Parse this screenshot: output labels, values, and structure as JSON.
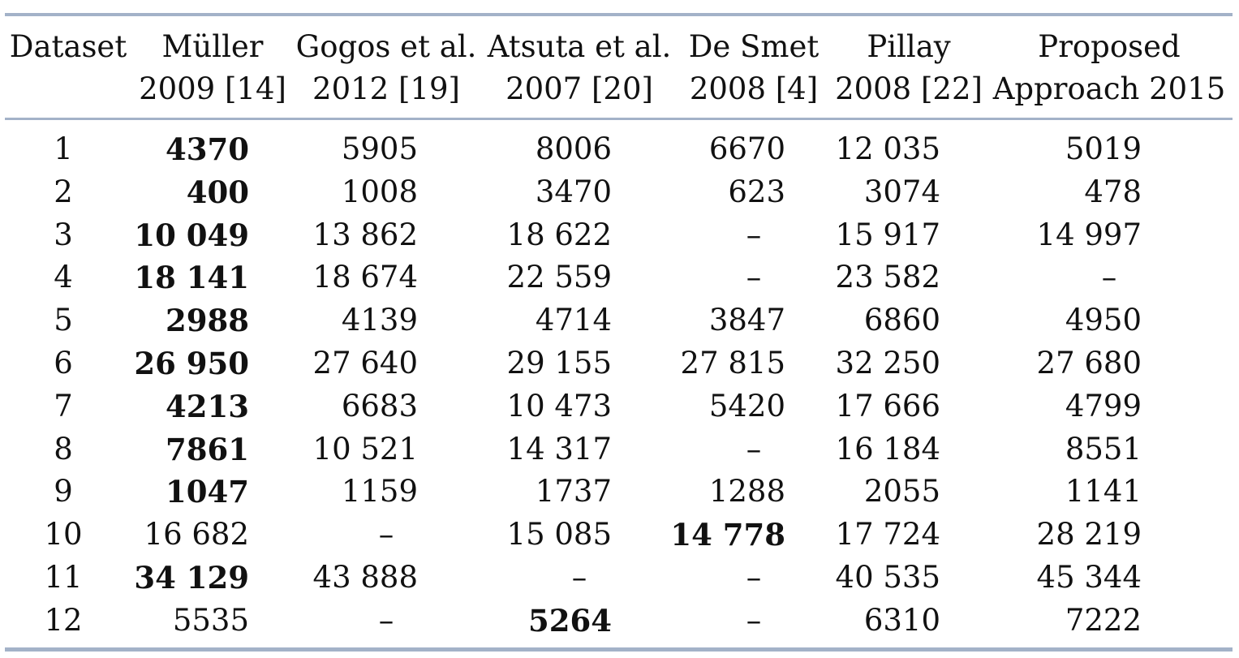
{
  "columns": [
    {
      "key": "dataset",
      "line1": "Dataset",
      "line2": ""
    },
    {
      "key": "muller",
      "line1": "Müller",
      "line2": "2009 [14]"
    },
    {
      "key": "gogos",
      "line1": "Gogos et al.",
      "line2": "2012 [19]"
    },
    {
      "key": "atsuta",
      "line1": "Atsuta et al.",
      "line2": "2007 [20]"
    },
    {
      "key": "desmet",
      "line1": "De Smet",
      "line2": "2008 [4]"
    },
    {
      "key": "pillay",
      "line1": "Pillay",
      "line2": "2008 [22]"
    },
    {
      "key": "proposed",
      "line1": "Proposed",
      "line2": "Approach 2015"
    }
  ],
  "rows": [
    {
      "dataset": "1",
      "values": [
        "4370",
        "5905",
        "8006",
        "6670",
        "12 035",
        "5019"
      ],
      "best": [
        0
      ]
    },
    {
      "dataset": "2",
      "values": [
        "400",
        "1008",
        "3470",
        "623",
        "3074",
        "478"
      ],
      "best": [
        0
      ]
    },
    {
      "dataset": "3",
      "values": [
        "10 049",
        "13 862",
        "18 622",
        "–",
        "15 917",
        "14 997"
      ],
      "best": [
        0
      ]
    },
    {
      "dataset": "4",
      "values": [
        "18 141",
        "18 674",
        "22 559",
        "–",
        "23 582",
        "–"
      ],
      "best": [
        0
      ]
    },
    {
      "dataset": "5",
      "values": [
        "2988",
        "4139",
        "4714",
        "3847",
        "6860",
        "4950"
      ],
      "best": [
        0
      ]
    },
    {
      "dataset": "6",
      "values": [
        "26 950",
        "27 640",
        "29 155",
        "27 815",
        "32 250",
        "27 680"
      ],
      "best": [
        0
      ]
    },
    {
      "dataset": "7",
      "values": [
        "4213",
        "6683",
        "10 473",
        "5420",
        "17 666",
        "4799"
      ],
      "best": [
        0
      ]
    },
    {
      "dataset": "8",
      "values": [
        "7861",
        "10 521",
        "14 317",
        "–",
        "16 184",
        "8551"
      ],
      "best": [
        0
      ]
    },
    {
      "dataset": "9",
      "values": [
        "1047",
        "1159",
        "1737",
        "1288",
        "2055",
        "1141"
      ],
      "best": [
        0
      ]
    },
    {
      "dataset": "10",
      "values": [
        "16 682",
        "–",
        "15 085",
        "14 778",
        "17 724",
        "28 219"
      ],
      "best": [
        3
      ]
    },
    {
      "dataset": "11",
      "values": [
        "34 129",
        "43 888",
        "–",
        "–",
        "40 535",
        "45 344"
      ],
      "best": [
        0
      ]
    },
    {
      "dataset": "12",
      "values": [
        "5535",
        "–",
        "5264",
        "–",
        "6310",
        "7222"
      ],
      "best": [
        2
      ]
    }
  ]
}
